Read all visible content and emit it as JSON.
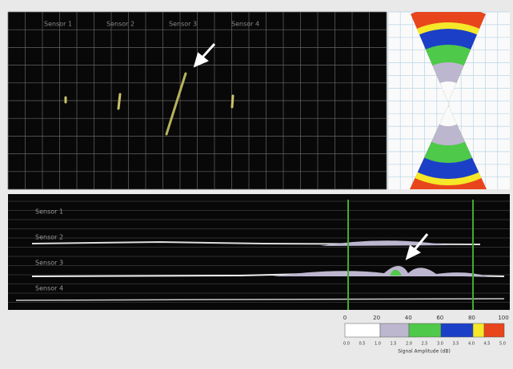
{
  "top_panel": {
    "sensor_labels": [
      "Sensor 1",
      "Sensor 2",
      "Sensor 3",
      "Sensor 4"
    ]
  },
  "bottom_panel": {
    "channel_labels": [
      "Sensor 1",
      "Sensor 2",
      "Sensor 3",
      "Sensor 4"
    ]
  },
  "color_scale": {
    "ticks": [
      "0",
      "20",
      "40",
      "60",
      "80",
      "100"
    ],
    "sub_labels": [
      "0.0",
      "0.5",
      "1.0",
      "1.5",
      "2.0",
      "2.5",
      "3.0",
      "3.5",
      "4.0",
      "4.5",
      "5.0"
    ],
    "caption": "Signal Amplitude (dB)"
  }
}
